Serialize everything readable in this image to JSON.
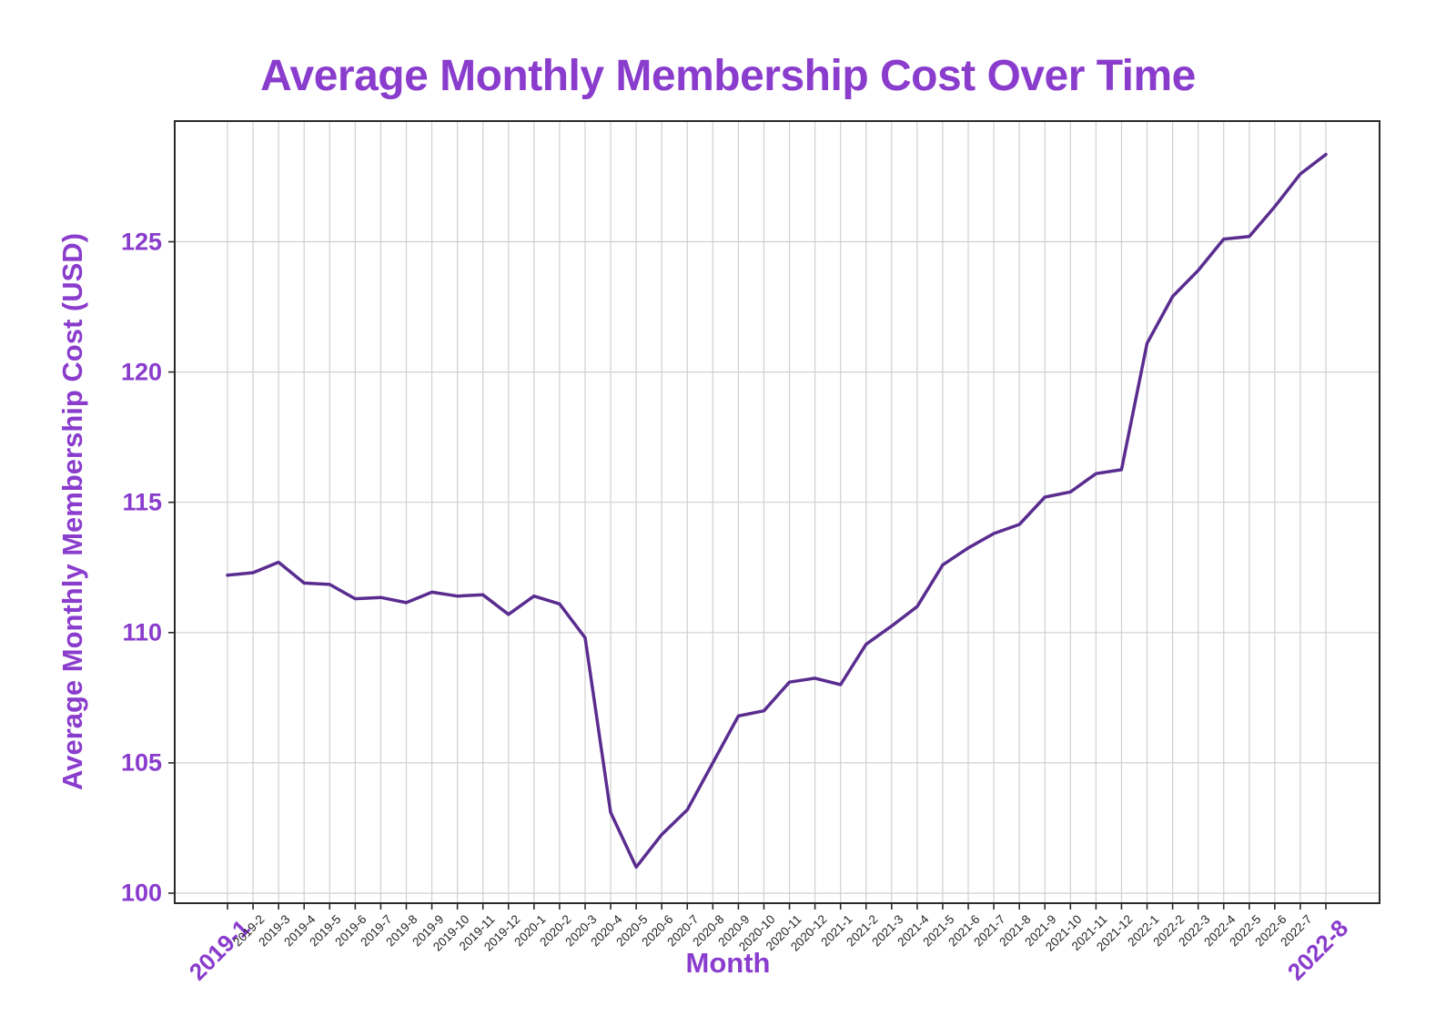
{
  "chart_data": {
    "type": "line",
    "title": "Average Monthly Membership Cost Over Time",
    "xlabel": "Month",
    "ylabel": "Average Monthly Membership Cost (USD)",
    "categories": [
      "2019-1",
      "2019-2",
      "2019-3",
      "2019-4",
      "2019-5",
      "2019-6",
      "2019-7",
      "2019-8",
      "2019-9",
      "2019-10",
      "2019-11",
      "2019-12",
      "2020-1",
      "2020-2",
      "2020-3",
      "2020-4",
      "2020-5",
      "2020-6",
      "2020-7",
      "2020-8",
      "2020-9",
      "2020-10",
      "2020-11",
      "2020-12",
      "2021-1",
      "2021-2",
      "2021-3",
      "2021-4",
      "2021-5",
      "2021-6",
      "2021-7",
      "2021-8",
      "2021-9",
      "2021-10",
      "2021-11",
      "2021-12",
      "2022-1",
      "2022-2",
      "2022-3",
      "2022-4",
      "2022-5",
      "2022-6",
      "2022-7",
      "2022-8"
    ],
    "series": [
      {
        "name": "Average Monthly Membership Cost (USD)",
        "values": [
          112.2,
          112.3,
          112.7,
          111.9,
          111.85,
          111.3,
          111.35,
          111.15,
          111.55,
          111.4,
          111.45,
          110.7,
          111.4,
          111.1,
          109.8,
          103.1,
          101.0,
          102.25,
          103.2,
          105.0,
          106.8,
          107.0,
          108.1,
          108.25,
          108.0,
          109.55,
          110.25,
          111.0,
          112.6,
          113.25,
          113.8,
          114.15,
          115.2,
          115.4,
          116.1,
          116.25,
          121.1,
          122.9,
          123.9,
          125.1,
          125.2,
          126.35,
          127.6,
          128.35
        ]
      }
    ],
    "yticks": [
      100,
      105,
      110,
      115,
      120,
      125
    ],
    "ylim": [
      99.6,
      129.7
    ],
    "grid": "both",
    "legend": "none",
    "emphasized_x_labels": [
      "2019-1",
      "2022-8"
    ],
    "colors": {
      "accent": "#8a3ccd",
      "line": "#5a2c90",
      "grid": "#d0d0d0",
      "spine": "#2a2a2a",
      "minor_tick_text": "#222222",
      "background": "#ffffff"
    }
  }
}
